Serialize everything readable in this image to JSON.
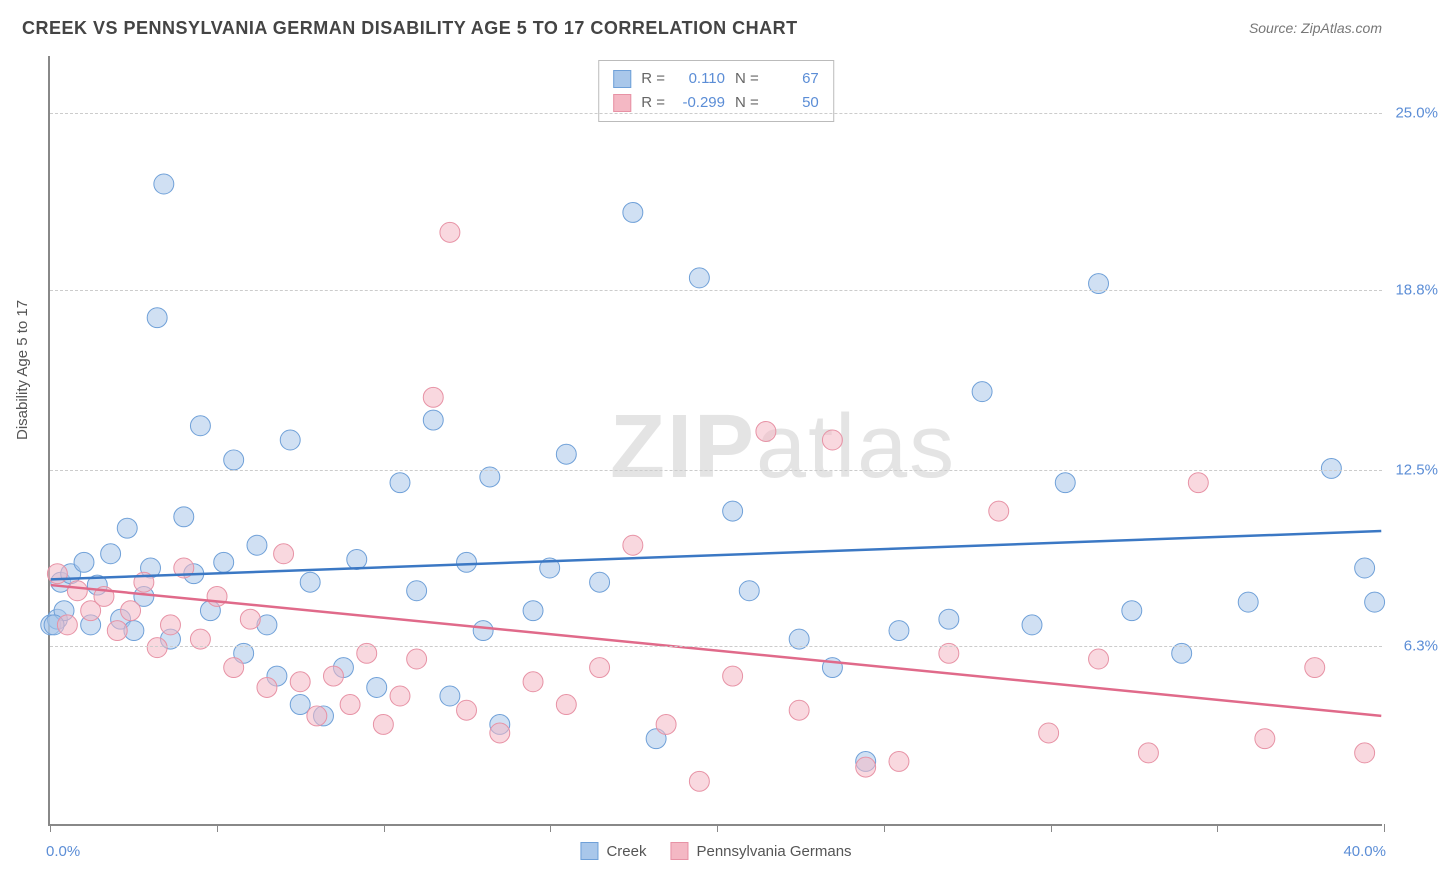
{
  "title": "CREEK VS PENNSYLVANIA GERMAN DISABILITY AGE 5 TO 17 CORRELATION CHART",
  "source": "Source: ZipAtlas.com",
  "watermark": {
    "part1": "ZIP",
    "part2": "atlas"
  },
  "y_axis_label": "Disability Age 5 to 17",
  "chart": {
    "type": "scatter",
    "xlim": [
      0,
      40
    ],
    "ylim": [
      0,
      27
    ],
    "x_min_label": "0.0%",
    "x_max_label": "40.0%",
    "x_ticks": [
      0,
      5,
      10,
      15,
      20,
      25,
      30,
      35,
      40
    ],
    "y_gridlines": [
      {
        "value": 6.3,
        "label": "6.3%"
      },
      {
        "value": 12.5,
        "label": "12.5%"
      },
      {
        "value": 18.8,
        "label": "18.8%"
      },
      {
        "value": 25.0,
        "label": "25.0%"
      }
    ],
    "background_color": "#ffffff",
    "grid_color": "#cccccc",
    "axis_color": "#888888",
    "label_color_blue": "#5b8dd6",
    "series": [
      {
        "name": "Creek",
        "fill": "#a9c7ea",
        "stroke": "#6fa0d8",
        "fill_opacity": 0.55,
        "marker_radius": 10,
        "R_label": "R =",
        "R_value": "0.110",
        "N_label": "N =",
        "N_value": "67",
        "trend": {
          "x1": 0,
          "y1": 8.6,
          "x2": 40,
          "y2": 10.3,
          "color": "#3b78c4",
          "width": 2.5
        },
        "points": [
          [
            0.0,
            7.0
          ],
          [
            0.2,
            7.2
          ],
          [
            0.3,
            8.5
          ],
          [
            0.4,
            7.5
          ],
          [
            0.6,
            8.8
          ],
          [
            1.0,
            9.2
          ],
          [
            1.2,
            7.0
          ],
          [
            1.4,
            8.4
          ],
          [
            1.8,
            9.5
          ],
          [
            2.1,
            7.2
          ],
          [
            2.3,
            10.4
          ],
          [
            2.5,
            6.8
          ],
          [
            2.8,
            8.0
          ],
          [
            3.0,
            9.0
          ],
          [
            3.2,
            17.8
          ],
          [
            3.4,
            22.5
          ],
          [
            3.6,
            6.5
          ],
          [
            4.0,
            10.8
          ],
          [
            4.3,
            8.8
          ],
          [
            4.5,
            14.0
          ],
          [
            4.8,
            7.5
          ],
          [
            5.2,
            9.2
          ],
          [
            5.5,
            12.8
          ],
          [
            5.8,
            6.0
          ],
          [
            6.2,
            9.8
          ],
          [
            6.5,
            7.0
          ],
          [
            6.8,
            5.2
          ],
          [
            7.2,
            13.5
          ],
          [
            7.5,
            4.2
          ],
          [
            7.8,
            8.5
          ],
          [
            8.2,
            3.8
          ],
          [
            8.8,
            5.5
          ],
          [
            9.2,
            9.3
          ],
          [
            9.8,
            4.8
          ],
          [
            10.5,
            12.0
          ],
          [
            11.0,
            8.2
          ],
          [
            11.5,
            14.2
          ],
          [
            12.0,
            4.5
          ],
          [
            12.5,
            9.2
          ],
          [
            13.0,
            6.8
          ],
          [
            13.2,
            12.2
          ],
          [
            13.5,
            3.5
          ],
          [
            14.5,
            7.5
          ],
          [
            15.0,
            9.0
          ],
          [
            15.5,
            13.0
          ],
          [
            16.5,
            8.5
          ],
          [
            17.5,
            21.5
          ],
          [
            18.2,
            3.0
          ],
          [
            19.5,
            19.2
          ],
          [
            20.5,
            11.0
          ],
          [
            21.0,
            8.2
          ],
          [
            22.5,
            6.5
          ],
          [
            23.5,
            5.5
          ],
          [
            24.5,
            2.2
          ],
          [
            25.5,
            6.8
          ],
          [
            27.0,
            7.2
          ],
          [
            28.0,
            15.2
          ],
          [
            29.5,
            7.0
          ],
          [
            30.5,
            12.0
          ],
          [
            31.5,
            19.0
          ],
          [
            32.5,
            7.5
          ],
          [
            34.0,
            6.0
          ],
          [
            36.0,
            7.8
          ],
          [
            38.5,
            12.5
          ],
          [
            39.5,
            9.0
          ],
          [
            39.8,
            7.8
          ],
          [
            0.1,
            7.0
          ]
        ]
      },
      {
        "name": "Pennsylvania Germans",
        "fill": "#f4b8c4",
        "stroke": "#e792a5",
        "fill_opacity": 0.55,
        "marker_radius": 10,
        "R_label": "R =",
        "R_value": "-0.299",
        "N_label": "N =",
        "N_value": "50",
        "trend": {
          "x1": 0,
          "y1": 8.4,
          "x2": 40,
          "y2": 3.8,
          "color": "#e06a8a",
          "width": 2.5
        },
        "points": [
          [
            0.2,
            8.8
          ],
          [
            0.5,
            7.0
          ],
          [
            0.8,
            8.2
          ],
          [
            1.2,
            7.5
          ],
          [
            1.6,
            8.0
          ],
          [
            2.0,
            6.8
          ],
          [
            2.4,
            7.5
          ],
          [
            2.8,
            8.5
          ],
          [
            3.2,
            6.2
          ],
          [
            3.6,
            7.0
          ],
          [
            4.0,
            9.0
          ],
          [
            4.5,
            6.5
          ],
          [
            5.0,
            8.0
          ],
          [
            5.5,
            5.5
          ],
          [
            6.0,
            7.2
          ],
          [
            6.5,
            4.8
          ],
          [
            7.0,
            9.5
          ],
          [
            7.5,
            5.0
          ],
          [
            8.0,
            3.8
          ],
          [
            8.5,
            5.2
          ],
          [
            9.0,
            4.2
          ],
          [
            9.5,
            6.0
          ],
          [
            10.0,
            3.5
          ],
          [
            10.5,
            4.5
          ],
          [
            11.0,
            5.8
          ],
          [
            11.5,
            15.0
          ],
          [
            12.0,
            20.8
          ],
          [
            12.5,
            4.0
          ],
          [
            13.5,
            3.2
          ],
          [
            14.5,
            5.0
          ],
          [
            15.5,
            4.2
          ],
          [
            16.5,
            5.5
          ],
          [
            17.5,
            9.8
          ],
          [
            18.5,
            3.5
          ],
          [
            19.5,
            1.5
          ],
          [
            20.5,
            5.2
          ],
          [
            21.5,
            13.8
          ],
          [
            22.5,
            4.0
          ],
          [
            23.5,
            13.5
          ],
          [
            24.5,
            2.0
          ],
          [
            25.5,
            2.2
          ],
          [
            27.0,
            6.0
          ],
          [
            28.5,
            11.0
          ],
          [
            30.0,
            3.2
          ],
          [
            31.5,
            5.8
          ],
          [
            33.0,
            2.5
          ],
          [
            34.5,
            12.0
          ],
          [
            36.5,
            3.0
          ],
          [
            38.0,
            5.5
          ],
          [
            39.5,
            2.5
          ]
        ]
      }
    ]
  },
  "legend": {
    "items": [
      {
        "label": "Creek",
        "fill": "#a9c7ea",
        "stroke": "#6fa0d8"
      },
      {
        "label": "Pennsylvania Germans",
        "fill": "#f4b8c4",
        "stroke": "#e792a5"
      }
    ]
  }
}
